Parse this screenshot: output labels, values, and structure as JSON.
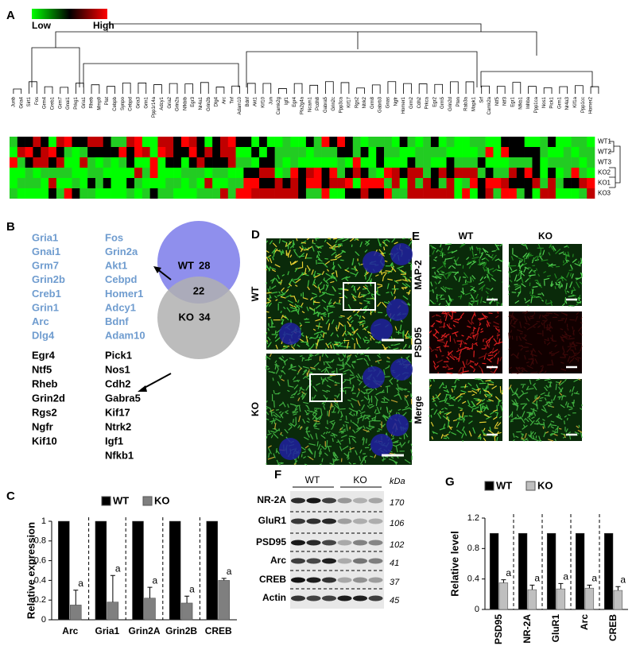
{
  "panel_labels": [
    "A",
    "B",
    "C",
    "D",
    "E",
    "F",
    "G"
  ],
  "heatmap": {
    "legend_low": "Low",
    "legend_high": "High",
    "genes": [
      "Junb",
      "Gria4",
      "Sirt1",
      "Fos",
      "Grm4",
      "Creb1",
      "Grm7",
      "Gnai1",
      "Prkg1",
      "Gria1",
      "Rheb",
      "Mmp9",
      "Plat",
      "Cebpb",
      "Synpo",
      "Cebpd",
      "Gria3",
      "Grin1",
      "Ppp1r14a",
      "Adcy1",
      "Gria2",
      "Grin2a",
      "Nfkbib",
      "Egr3",
      "Nr4a1",
      "Grin2b",
      "Dlg4",
      "Arc",
      "Tnf",
      "Adam10",
      "Bdnf",
      "Akt1",
      "Kif10",
      "Jun",
      "Camk2g",
      "Igf1",
      "Egr4",
      "Pla2g4a",
      "Ncam1",
      "Pcdh8",
      "Gabra5",
      "Grin2c",
      "Ppp3ca",
      "Kif17",
      "Rgs2",
      "Ntrk2",
      "Grm8",
      "Gabrb3",
      "Gnas",
      "Ngfr",
      "Homer1",
      "Grm2",
      "Cdh2",
      "Prkca",
      "Egr2",
      "Grm5",
      "Grin2d",
      "Pten",
      "Rab3a",
      "Mapk1",
      "Srf",
      "Camk2a",
      "Ntf5",
      "Ntf3",
      "Egr1",
      "Nfkb1",
      "Inhba",
      "Ppp1ca",
      "Nos1",
      "Pick1",
      "Grm1",
      "Nr4a3",
      "Kif1a",
      "Ppp1cc",
      "Homer2"
    ],
    "rows": [
      "WT1",
      "WT2",
      "WT3",
      "KO2",
      "KO1",
      "KO3"
    ]
  },
  "venn": {
    "list_top": [
      [
        "Gria1",
        "Gnai1",
        "Grm7",
        "Grin2b",
        "Creb1",
        "Grin1",
        "Arc",
        "Dlg4"
      ],
      [
        "Fos",
        "Grin2a",
        "Akt1",
        "Cebpd",
        "Homer1",
        "Adcy1",
        "Bdnf",
        "Adam10"
      ]
    ],
    "list_bottom": [
      [
        "Egr4",
        "Ntf5",
        "Rheb",
        "Grin2d",
        "Rgs2",
        "Ngfr",
        "Kif10"
      ],
      [
        "Pick1",
        "Nos1",
        "Cdh2",
        "Gabra5",
        "Kif17",
        "Ntrk2",
        "Igf1",
        "Nfkb1"
      ]
    ],
    "wt": "WT",
    "wt_count": 28,
    "shared_count": 22,
    "ko": "KO",
    "ko_count": 34
  },
  "micrographs": {
    "d_rows": [
      "WT",
      "KO"
    ],
    "e_cols": [
      "WT",
      "KO"
    ],
    "e_rows": [
      "MAP-2",
      "PSD95",
      "Merge"
    ]
  },
  "blot": {
    "groups": [
      "WT",
      "KO"
    ],
    "unit": "kDa",
    "bands": [
      {
        "name": "NR-2A",
        "kda": 170
      },
      {
        "name": "GluR1",
        "kda": 106
      },
      {
        "name": "PSD95",
        "kda": 102
      },
      {
        "name": "Arc",
        "kda": 41
      },
      {
        "name": "CREB",
        "kda": 37
      },
      {
        "name": "Actin",
        "kda": 45
      }
    ]
  },
  "chart_data": [
    {
      "type": "bar",
      "y_label": "Relative expression",
      "categories": [
        "Arc",
        "Gria1",
        "Grin2A",
        "Grin2B",
        "CREB"
      ],
      "series": [
        {
          "name": "WT",
          "color": "#000000",
          "values": [
            1,
            1,
            1,
            1,
            1
          ]
        },
        {
          "name": "KO",
          "color": "#7f7f7f",
          "values": [
            0.15,
            0.18,
            0.22,
            0.17,
            0.4
          ],
          "errors": [
            0.15,
            0.27,
            0.11,
            0.07,
            0.02
          ]
        }
      ],
      "annotation": "a",
      "ylim": [
        0,
        1
      ],
      "yticks": [
        0,
        0.2,
        0.4,
        0.6,
        0.8,
        1
      ]
    },
    {
      "type": "bar",
      "y_label": "Relative level",
      "categories": [
        "PSD95",
        "NR-2A",
        "GluR1",
        "Arc",
        "CREB"
      ],
      "series": [
        {
          "name": "WT",
          "color": "#000000",
          "values": [
            1,
            1,
            1,
            1,
            1
          ]
        },
        {
          "name": "KO",
          "color": "#bfbfbf",
          "values": [
            0.35,
            0.26,
            0.27,
            0.28,
            0.25
          ],
          "errors": [
            0.04,
            0.06,
            0.07,
            0.04,
            0.05
          ]
        }
      ],
      "annotation": "a",
      "ylim": [
        0,
        1.2
      ],
      "yticks": [
        0,
        0.4,
        0.8,
        1.2
      ]
    }
  ]
}
